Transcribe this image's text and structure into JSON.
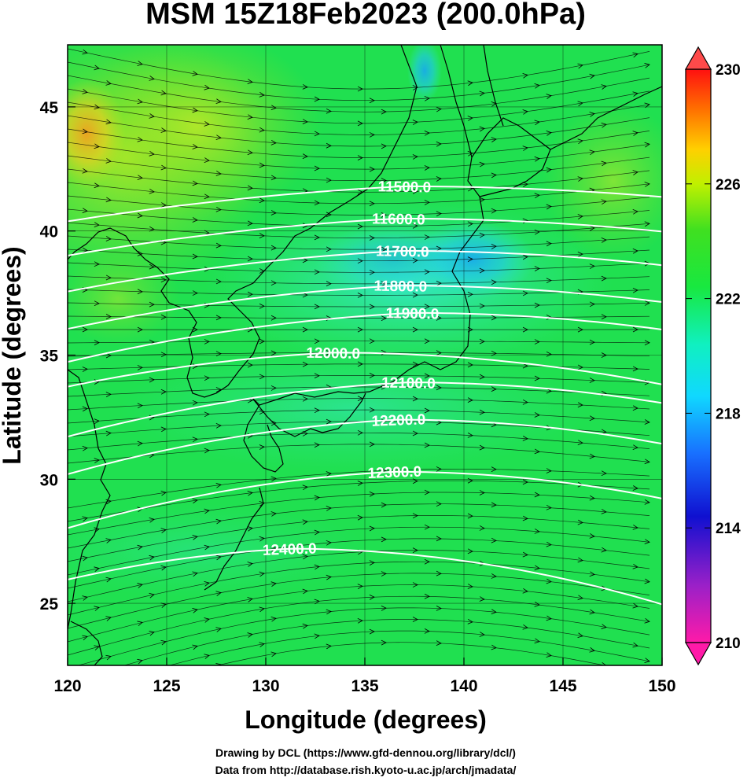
{
  "title": "MSM 15Z18Feb2023 (200.0hPa)",
  "x_axis": {
    "label": "Longitude (degrees)",
    "range": [
      120,
      150
    ],
    "ticks": [
      "120",
      "125",
      "130",
      "135",
      "140",
      "145",
      "150"
    ]
  },
  "y_axis": {
    "label": "Latitude  (degrees)",
    "range": [
      22.5,
      47.5
    ],
    "ticks": [
      "25",
      "30",
      "35",
      "40",
      "45"
    ]
  },
  "colorbar": {
    "range": [
      210,
      230
    ],
    "ticks": [
      "210",
      "214",
      "218",
      "222",
      "226",
      "230"
    ],
    "low_color": "#ff1aa8",
    "high_color": "#ff4a4a"
  },
  "contours": [
    {
      "label": "11500.0",
      "lon": 137.0,
      "lat": 41.8
    },
    {
      "label": "11600.0",
      "lon": 136.7,
      "lat": 40.5
    },
    {
      "label": "11700.0",
      "lon": 136.9,
      "lat": 39.2
    },
    {
      "label": "11800.0",
      "lon": 136.8,
      "lat": 37.8
    },
    {
      "label": "11900.0",
      "lon": 137.4,
      "lat": 36.7
    },
    {
      "label": "12000.0",
      "lon": 133.4,
      "lat": 35.1
    },
    {
      "label": "12100.0",
      "lon": 137.2,
      "lat": 33.9
    },
    {
      "label": "12200.0",
      "lon": 136.7,
      "lat": 32.4
    },
    {
      "label": "12300.0",
      "lon": 136.5,
      "lat": 30.3
    },
    {
      "label": "12400.0",
      "lon": 131.2,
      "lat": 27.2
    }
  ],
  "credits": [
    "Drawing by DCL (https://www.gfd-dennou.org/library/dcl/)",
    "Data from http://database.rish.kyoto-u.ac.jp/arch/jmadata/"
  ]
}
